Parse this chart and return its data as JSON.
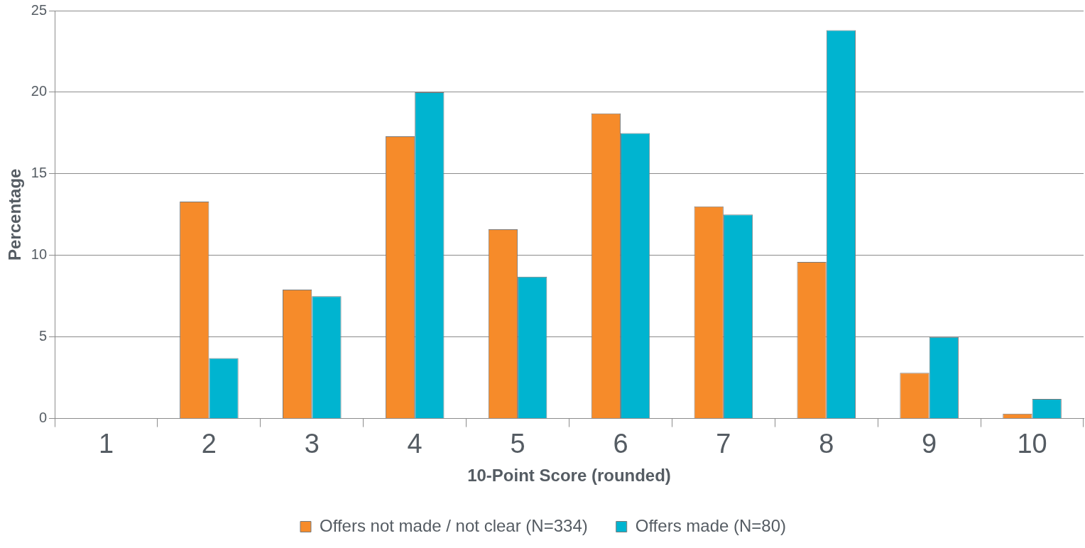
{
  "chart_data": {
    "type": "bar",
    "xlabel": "10-Point Score (rounded)",
    "ylabel": "Percentage",
    "categories": [
      "1",
      "2",
      "3",
      "4",
      "5",
      "6",
      "7",
      "8",
      "9",
      "10"
    ],
    "series": [
      {
        "name": "Offers not made / not clear (N=334)",
        "color": "#f68b2a",
        "values": [
          0,
          13.3,
          7.9,
          17.3,
          11.6,
          18.7,
          13.0,
          9.6,
          2.8,
          0.3
        ]
      },
      {
        "name": "Offers made (N=80)",
        "color": "#00b4d0",
        "values": [
          0,
          3.7,
          7.5,
          20.0,
          8.7,
          17.5,
          12.5,
          23.8,
          5.0,
          1.2
        ]
      }
    ],
    "ylim": [
      0,
      25
    ],
    "yticks": [
      0,
      5,
      10,
      15,
      20,
      25
    ],
    "grid": "y",
    "legend": "bottom"
  }
}
